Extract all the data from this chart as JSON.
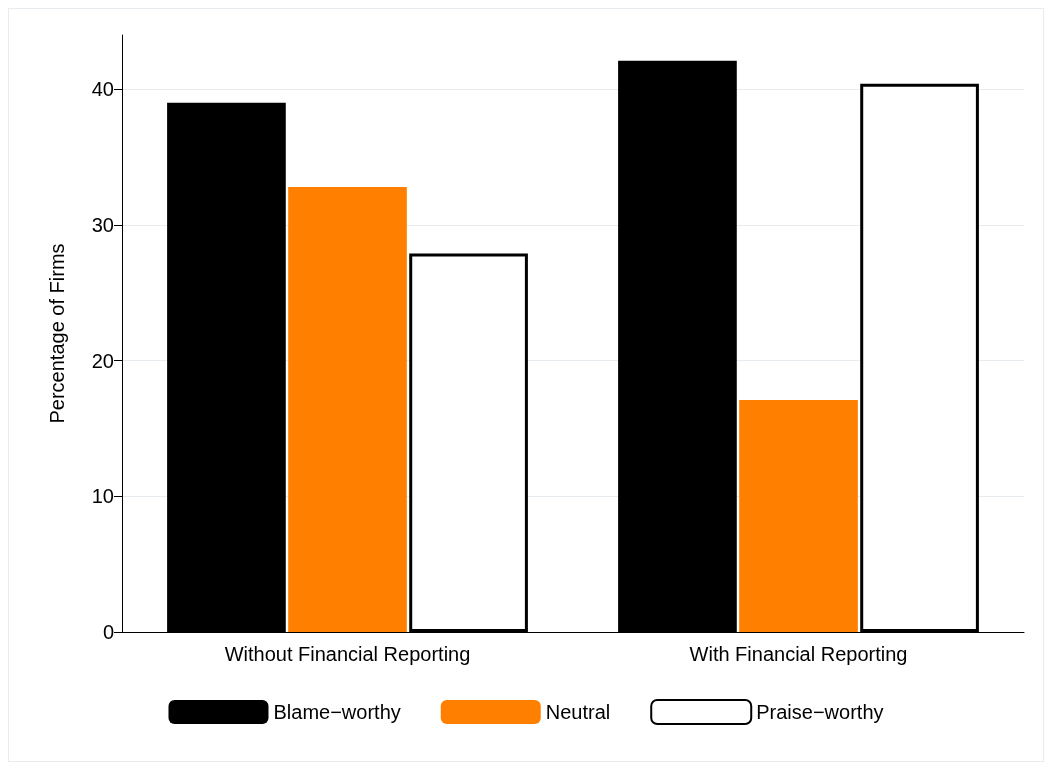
{
  "chart_data": {
    "type": "bar",
    "ylabel": "Percentage of Firms",
    "categories": [
      "Without Financial Reporting",
      "With Financial Reporting"
    ],
    "series": [
      {
        "name": "Blame−worthy",
        "color": "#000000",
        "values": [
          39.0,
          42.1
        ]
      },
      {
        "name": "Neutral",
        "color": "#ff8000",
        "values": [
          32.8,
          17.1
        ]
      },
      {
        "name": "Praise−worthy",
        "color": "#ffffff",
        "values": [
          27.9,
          40.4
        ]
      }
    ],
    "ylim": [
      0,
      44
    ],
    "yticks": [
      0,
      10,
      20,
      30,
      40
    ],
    "grid": "y",
    "legend": "bottom"
  }
}
